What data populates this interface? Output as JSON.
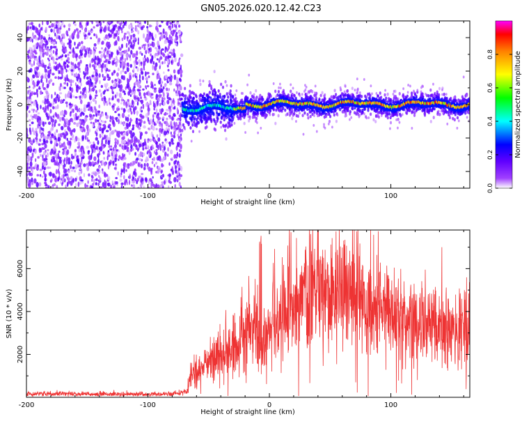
{
  "title": "GN05.2026.020.12.42.C23",
  "chart_data": [
    {
      "type": "heatmap",
      "xlabel": "Height of straight line (km)",
      "ylabel": "Frequency (Hz)",
      "xlim": [
        -200,
        165
      ],
      "ylim": [
        -50,
        50
      ],
      "xticks": [
        -200,
        -100,
        0,
        100
      ],
      "yticks": [
        -40,
        -20,
        0,
        20,
        40
      ],
      "noise_region_x": [
        -200,
        -72
      ],
      "signal_band_center_hz": 0,
      "colorbar": {
        "label": "Normalized spectral amplitude",
        "range": [
          0.0,
          1.0
        ],
        "ticks": [
          0.0,
          0.2,
          0.4,
          0.6,
          0.8
        ],
        "colormap": [
          "#ffffff",
          "#7f00ff",
          "#0000ff",
          "#00ffff",
          "#00ff00",
          "#ffff00",
          "#ff7f00",
          "#ff0000",
          "#ff00ff"
        ]
      }
    },
    {
      "type": "line",
      "xlabel": "Height of straight line (km)",
      "ylabel": "SNR (10 * v/v)",
      "xlim": [
        -200,
        165
      ],
      "ylim": [
        0,
        7800
      ],
      "xticks": [
        -200,
        -100,
        0,
        100
      ],
      "yticks": [
        2000,
        4000,
        6000
      ],
      "line_color": "#ee3333",
      "envelope": {
        "x": [
          -200,
          -80,
          -68,
          -66,
          -60,
          -50,
          -40,
          -30,
          -20,
          -12,
          -10,
          -8,
          -6,
          -4,
          0,
          10,
          20,
          30,
          40,
          50,
          60,
          70,
          80,
          90,
          100,
          110,
          120,
          130,
          140,
          150,
          165
        ],
        "y": [
          150,
          150,
          250,
          900,
          1200,
          1600,
          2000,
          2400,
          2700,
          3100,
          3200,
          2800,
          1800,
          2900,
          3200,
          3600,
          4500,
          5100,
          5000,
          4700,
          4500,
          4600,
          4500,
          4200,
          3900,
          3600,
          3400,
          3300,
          3300,
          3200,
          3100
        ]
      }
    }
  ]
}
